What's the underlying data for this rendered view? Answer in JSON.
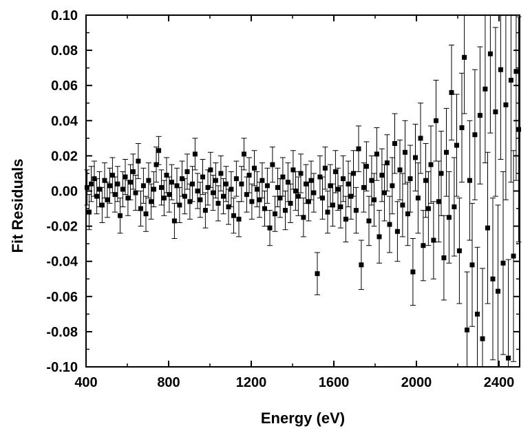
{
  "chart_data": {
    "type": "scatter",
    "title": "",
    "xlabel": "Energy (eV)",
    "ylabel": "Fit Residuals",
    "xlim": [
      400,
      2500
    ],
    "ylim": [
      -0.1,
      0.1
    ],
    "x_ticks": [
      400,
      800,
      1200,
      1600,
      2000,
      2400
    ],
    "x_tick_labels": [
      "400",
      "800",
      "1200",
      "1600",
      "2000",
      "2400"
    ],
    "y_ticks": [
      -0.1,
      -0.08,
      -0.06,
      -0.04,
      -0.02,
      0.0,
      0.02,
      0.04,
      0.06,
      0.08,
      0.1
    ],
    "y_tick_labels": [
      "-0.10",
      "-0.08",
      "-0.06",
      "-0.04",
      "-0.02",
      "0.00",
      "0.02",
      "0.04",
      "0.06",
      "0.08",
      "0.10"
    ],
    "grid": false,
    "legend": "none",
    "marker": "square",
    "color": "#000000",
    "series": [
      {
        "name": "Fit Residuals",
        "points": [
          {
            "x": 405,
            "y": 0.002,
            "err": 0.01
          },
          {
            "x": 415,
            "y": -0.012,
            "err": 0.01
          },
          {
            "x": 425,
            "y": 0.004,
            "err": 0.01
          },
          {
            "x": 440,
            "y": 0.007,
            "err": 0.01
          },
          {
            "x": 452,
            "y": -0.003,
            "err": 0.01
          },
          {
            "x": 465,
            "y": 0.001,
            "err": 0.01
          },
          {
            "x": 478,
            "y": -0.008,
            "err": 0.01
          },
          {
            "x": 490,
            "y": 0.006,
            "err": 0.01
          },
          {
            "x": 503,
            "y": -0.005,
            "err": 0.01
          },
          {
            "x": 515,
            "y": 0.003,
            "err": 0.01
          },
          {
            "x": 528,
            "y": 0.009,
            "err": 0.01
          },
          {
            "x": 540,
            "y": -0.002,
            "err": 0.01
          },
          {
            "x": 553,
            "y": 0.004,
            "err": 0.01
          },
          {
            "x": 565,
            "y": -0.014,
            "err": 0.01
          },
          {
            "x": 578,
            "y": 0.001,
            "err": 0.01
          },
          {
            "x": 590,
            "y": 0.008,
            "err": 0.01
          },
          {
            "x": 603,
            "y": -0.004,
            "err": 0.01
          },
          {
            "x": 615,
            "y": 0.005,
            "err": 0.01
          },
          {
            "x": 628,
            "y": 0.011,
            "err": 0.01
          },
          {
            "x": 640,
            "y": -0.001,
            "err": 0.01
          },
          {
            "x": 653,
            "y": 0.017,
            "err": 0.01
          },
          {
            "x": 665,
            "y": -0.01,
            "err": 0.01
          },
          {
            "x": 678,
            "y": 0.003,
            "err": 0.01
          },
          {
            "x": 690,
            "y": -0.013,
            "err": 0.01
          },
          {
            "x": 703,
            "y": 0.006,
            "err": 0.01
          },
          {
            "x": 715,
            "y": -0.006,
            "err": 0.01
          },
          {
            "x": 728,
            "y": 0.001,
            "err": 0.01
          },
          {
            "x": 740,
            "y": 0.015,
            "err": 0.01
          },
          {
            "x": 752,
            "y": 0.023,
            "err": 0.008
          },
          {
            "x": 765,
            "y": 0.002,
            "err": 0.01
          },
          {
            "x": 778,
            "y": -0.004,
            "err": 0.01
          },
          {
            "x": 790,
            "y": 0.009,
            "err": 0.01
          },
          {
            "x": 803,
            "y": -0.002,
            "err": 0.01
          },
          {
            "x": 815,
            "y": 0.005,
            "err": 0.01
          },
          {
            "x": 828,
            "y": -0.017,
            "err": 0.01
          },
          {
            "x": 840,
            "y": 0.003,
            "err": 0.01
          },
          {
            "x": 853,
            "y": -0.008,
            "err": 0.01
          },
          {
            "x": 865,
            "y": 0.007,
            "err": 0.01
          },
          {
            "x": 878,
            "y": -0.003,
            "err": 0.01
          },
          {
            "x": 890,
            "y": 0.011,
            "err": 0.01
          },
          {
            "x": 903,
            "y": -0.006,
            "err": 0.01
          },
          {
            "x": 915,
            "y": 0.004,
            "err": 0.01
          },
          {
            "x": 928,
            "y": 0.021,
            "err": 0.009
          },
          {
            "x": 940,
            "y": 0.0,
            "err": 0.01
          },
          {
            "x": 953,
            "y": -0.005,
            "err": 0.01
          },
          {
            "x": 965,
            "y": 0.008,
            "err": 0.01
          },
          {
            "x": 978,
            "y": -0.011,
            "err": 0.01
          },
          {
            "x": 990,
            "y": 0.002,
            "err": 0.01
          },
          {
            "x": 1003,
            "y": 0.012,
            "err": 0.01
          },
          {
            "x": 1015,
            "y": -0.001,
            "err": 0.01
          },
          {
            "x": 1028,
            "y": 0.006,
            "err": 0.01
          },
          {
            "x": 1040,
            "y": -0.007,
            "err": 0.01
          },
          {
            "x": 1053,
            "y": 0.01,
            "err": 0.01
          },
          {
            "x": 1065,
            "y": -0.003,
            "err": 0.01
          },
          {
            "x": 1078,
            "y": 0.004,
            "err": 0.01
          },
          {
            "x": 1090,
            "y": -0.009,
            "err": 0.01
          },
          {
            "x": 1103,
            "y": 0.001,
            "err": 0.01
          },
          {
            "x": 1115,
            "y": -0.014,
            "err": 0.01
          },
          {
            "x": 1128,
            "y": 0.007,
            "err": 0.01
          },
          {
            "x": 1140,
            "y": -0.016,
            "err": 0.01
          },
          {
            "x": 1153,
            "y": 0.004,
            "err": 0.01
          },
          {
            "x": 1165,
            "y": 0.021,
            "err": 0.009
          },
          {
            "x": 1178,
            "y": -0.002,
            "err": 0.01
          },
          {
            "x": 1190,
            "y": 0.009,
            "err": 0.01
          },
          {
            "x": 1203,
            "y": -0.006,
            "err": 0.01
          },
          {
            "x": 1215,
            "y": 0.013,
            "err": 0.01
          },
          {
            "x": 1228,
            "y": 0.001,
            "err": 0.01
          },
          {
            "x": 1240,
            "y": -0.005,
            "err": 0.01
          },
          {
            "x": 1253,
            "y": 0.006,
            "err": 0.01
          },
          {
            "x": 1265,
            "y": -0.01,
            "err": 0.01
          },
          {
            "x": 1278,
            "y": 0.003,
            "err": 0.01
          },
          {
            "x": 1290,
            "y": -0.021,
            "err": 0.01
          },
          {
            "x": 1303,
            "y": 0.015,
            "err": 0.01
          },
          {
            "x": 1315,
            "y": -0.013,
            "err": 0.01
          },
          {
            "x": 1328,
            "y": 0.002,
            "err": 0.011
          },
          {
            "x": 1340,
            "y": -0.004,
            "err": 0.011
          },
          {
            "x": 1353,
            "y": 0.008,
            "err": 0.011
          },
          {
            "x": 1365,
            "y": -0.011,
            "err": 0.011
          },
          {
            "x": 1378,
            "y": 0.005,
            "err": 0.011
          },
          {
            "x": 1390,
            "y": -0.007,
            "err": 0.011
          },
          {
            "x": 1403,
            "y": 0.012,
            "err": 0.011
          },
          {
            "x": 1415,
            "y": 0.0,
            "err": 0.011
          },
          {
            "x": 1428,
            "y": -0.003,
            "err": 0.011
          },
          {
            "x": 1440,
            "y": 0.01,
            "err": 0.011
          },
          {
            "x": 1453,
            "y": -0.015,
            "err": 0.011
          },
          {
            "x": 1465,
            "y": 0.004,
            "err": 0.011
          },
          {
            "x": 1478,
            "y": -0.006,
            "err": 0.011
          },
          {
            "x": 1490,
            "y": 0.006,
            "err": 0.011
          },
          {
            "x": 1503,
            "y": -0.001,
            "err": 0.011
          },
          {
            "x": 1520,
            "y": -0.047,
            "err": 0.012
          },
          {
            "x": 1533,
            "y": 0.008,
            "err": 0.012
          },
          {
            "x": 1545,
            "y": -0.004,
            "err": 0.012
          },
          {
            "x": 1558,
            "y": 0.013,
            "err": 0.012
          },
          {
            "x": 1570,
            "y": -0.012,
            "err": 0.012
          },
          {
            "x": 1583,
            "y": 0.003,
            "err": 0.012
          },
          {
            "x": 1595,
            "y": -0.008,
            "err": 0.012
          },
          {
            "x": 1608,
            "y": 0.011,
            "err": 0.012
          },
          {
            "x": 1620,
            "y": 0.001,
            "err": 0.012
          },
          {
            "x": 1633,
            "y": -0.009,
            "err": 0.012
          },
          {
            "x": 1645,
            "y": 0.007,
            "err": 0.013
          },
          {
            "x": 1658,
            "y": -0.016,
            "err": 0.013
          },
          {
            "x": 1670,
            "y": 0.004,
            "err": 0.013
          },
          {
            "x": 1683,
            "y": -0.003,
            "err": 0.013
          },
          {
            "x": 1695,
            "y": 0.01,
            "err": 0.013
          },
          {
            "x": 1708,
            "y": -0.011,
            "err": 0.013
          },
          {
            "x": 1720,
            "y": 0.024,
            "err": 0.013
          },
          {
            "x": 1733,
            "y": -0.042,
            "err": 0.014
          },
          {
            "x": 1745,
            "y": 0.002,
            "err": 0.014
          },
          {
            "x": 1758,
            "y": 0.014,
            "err": 0.014
          },
          {
            "x": 1770,
            "y": -0.017,
            "err": 0.014
          },
          {
            "x": 1783,
            "y": 0.006,
            "err": 0.014
          },
          {
            "x": 1795,
            "y": -0.005,
            "err": 0.015
          },
          {
            "x": 1808,
            "y": 0.021,
            "err": 0.015
          },
          {
            "x": 1820,
            "y": -0.026,
            "err": 0.015
          },
          {
            "x": 1833,
            "y": 0.009,
            "err": 0.015
          },
          {
            "x": 1845,
            "y": -0.001,
            "err": 0.016
          },
          {
            "x": 1858,
            "y": 0.016,
            "err": 0.016
          },
          {
            "x": 1870,
            "y": -0.019,
            "err": 0.016
          },
          {
            "x": 1883,
            "y": 0.003,
            "err": 0.016
          },
          {
            "x": 1895,
            "y": 0.027,
            "err": 0.017
          },
          {
            "x": 1908,
            "y": -0.023,
            "err": 0.017
          },
          {
            "x": 1920,
            "y": 0.012,
            "err": 0.017
          },
          {
            "x": 1933,
            "y": -0.008,
            "err": 0.018
          },
          {
            "x": 1945,
            "y": 0.022,
            "err": 0.018
          },
          {
            "x": 1958,
            "y": -0.013,
            "err": 0.018
          },
          {
            "x": 1970,
            "y": 0.007,
            "err": 0.019
          },
          {
            "x": 1983,
            "y": -0.046,
            "err": 0.019
          },
          {
            "x": 1995,
            "y": 0.019,
            "err": 0.019
          },
          {
            "x": 2008,
            "y": -0.004,
            "err": 0.02
          },
          {
            "x": 2020,
            "y": 0.03,
            "err": 0.02
          },
          {
            "x": 2033,
            "y": -0.031,
            "err": 0.02
          },
          {
            "x": 2045,
            "y": 0.006,
            "err": 0.021
          },
          {
            "x": 2058,
            "y": -0.01,
            "err": 0.021
          },
          {
            "x": 2070,
            "y": 0.015,
            "err": 0.022
          },
          {
            "x": 2083,
            "y": -0.028,
            "err": 0.022
          },
          {
            "x": 2095,
            "y": 0.04,
            "err": 0.023
          },
          {
            "x": 2108,
            "y": -0.006,
            "err": 0.023
          },
          {
            "x": 2120,
            "y": 0.01,
            "err": 0.024
          },
          {
            "x": 2133,
            "y": -0.038,
            "err": 0.024
          },
          {
            "x": 2145,
            "y": 0.022,
            "err": 0.025
          },
          {
            "x": 2158,
            "y": -0.015,
            "err": 0.026
          },
          {
            "x": 2170,
            "y": 0.056,
            "err": 0.027
          },
          {
            "x": 2183,
            "y": -0.009,
            "err": 0.028
          },
          {
            "x": 2195,
            "y": 0.026,
            "err": 0.029
          },
          {
            "x": 2208,
            "y": -0.034,
            "err": 0.03
          },
          {
            "x": 2220,
            "y": 0.036,
            "err": 0.031
          },
          {
            "x": 2232,
            "y": 0.076,
            "err": 0.032
          },
          {
            "x": 2245,
            "y": -0.079,
            "err": 0.033
          },
          {
            "x": 2258,
            "y": 0.006,
            "err": 0.034
          },
          {
            "x": 2270,
            "y": -0.042,
            "err": 0.035
          },
          {
            "x": 2283,
            "y": 0.032,
            "err": 0.037
          },
          {
            "x": 2295,
            "y": -0.07,
            "err": 0.038
          },
          {
            "x": 2308,
            "y": 0.043,
            "err": 0.039
          },
          {
            "x": 2320,
            "y": -0.084,
            "err": 0.04
          },
          {
            "x": 2333,
            "y": 0.058,
            "err": 0.042
          },
          {
            "x": 2345,
            "y": -0.021,
            "err": 0.043
          },
          {
            "x": 2358,
            "y": 0.078,
            "err": 0.045
          },
          {
            "x": 2370,
            "y": -0.05,
            "err": 0.046
          },
          {
            "x": 2383,
            "y": 0.045,
            "err": 0.048
          },
          {
            "x": 2395,
            "y": -0.057,
            "err": 0.049
          },
          {
            "x": 2408,
            "y": 0.069,
            "err": 0.051
          },
          {
            "x": 2420,
            "y": -0.041,
            "err": 0.052
          },
          {
            "x": 2433,
            "y": 0.049,
            "err": 0.054
          },
          {
            "x": 2445,
            "y": -0.095,
            "err": 0.056
          },
          {
            "x": 2458,
            "y": 0.063,
            "err": 0.058
          },
          {
            "x": 2470,
            "y": -0.037,
            "err": 0.06
          },
          {
            "x": 2483,
            "y": 0.068,
            "err": 0.062
          },
          {
            "x": 2495,
            "y": 0.035,
            "err": 0.064
          }
        ]
      }
    ]
  }
}
